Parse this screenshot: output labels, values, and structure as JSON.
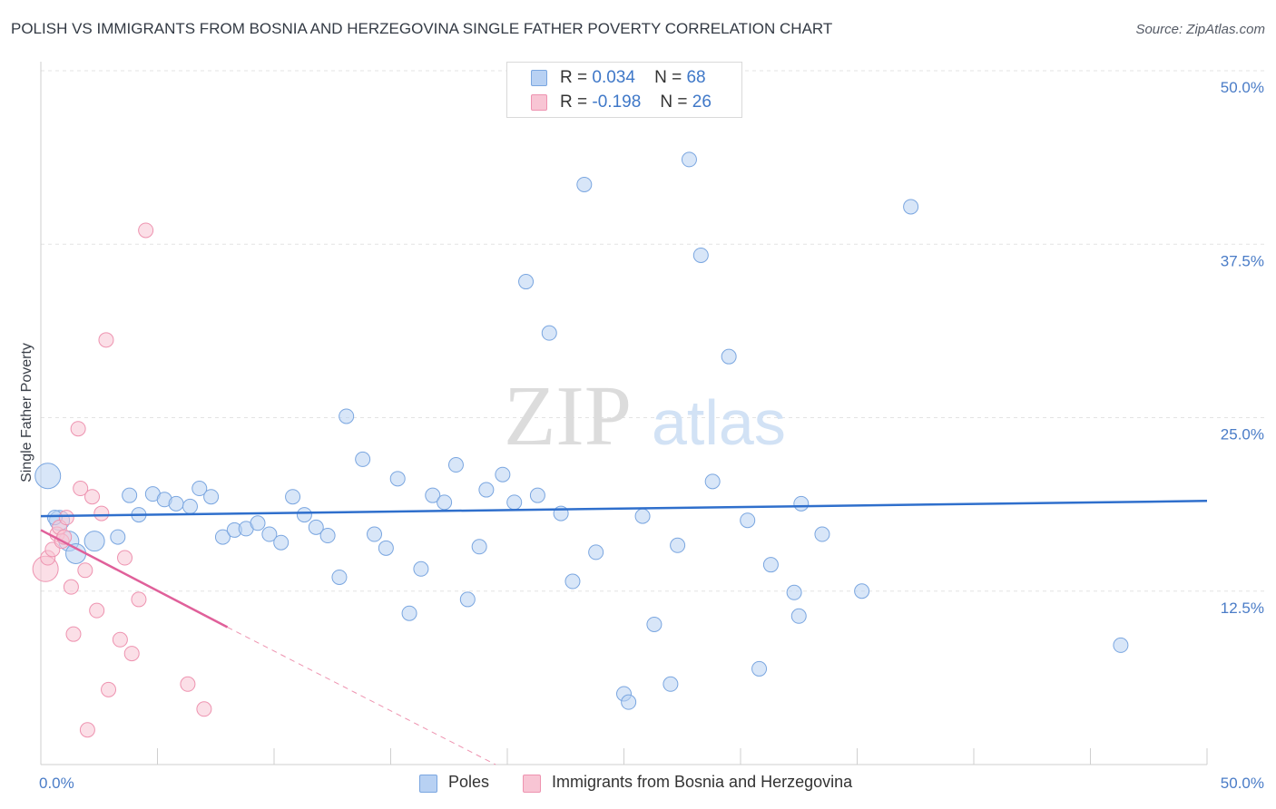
{
  "chart_data": {
    "type": "scatter",
    "title": "POLISH VS IMMIGRANTS FROM BOSNIA AND HERZEGOVINA SINGLE FATHER POVERTY CORRELATION CHART",
    "source": "Source: ZipAtlas.com",
    "ylabel": "Single Father Poverty",
    "xlabel": "",
    "xlim": [
      0,
      50
    ],
    "ylim": [
      0,
      50
    ],
    "x_tick_labels": [
      "0.0%",
      "50.0%"
    ],
    "y_tick_labels": [
      "12.5%",
      "25.0%",
      "37.5%",
      "50.0%"
    ],
    "y_ticks": [
      12.5,
      25.0,
      37.5,
      50.0
    ],
    "watermark": {
      "zip": "ZIP",
      "atlas": "atlas"
    },
    "legend": {
      "r_label": "R =",
      "n_label": "N =",
      "entries": [
        {
          "name": "Poles",
          "r": "0.034",
          "n": "68"
        },
        {
          "name": "Immigrants from Bosnia and Herzegovina",
          "r": "-0.198",
          "n": "26"
        }
      ]
    },
    "colors": {
      "poles_fill": "#b8d1f3",
      "poles_stroke": "#7aa6e0",
      "poles_line": "#2f6fcc",
      "bosnia_fill": "#f8c5d4",
      "bosnia_stroke": "#ee93b0",
      "bosnia_line": "#e0609a",
      "axis_text": "#4a7cc7"
    },
    "series": [
      {
        "name": "Poles",
        "trend": {
          "x": [
            0,
            50
          ],
          "y": [
            17.9,
            19.0
          ]
        },
        "points": [
          [
            0.3,
            20.8
          ],
          [
            0.8,
            17.6
          ],
          [
            1.2,
            16.1
          ],
          [
            1.5,
            15.2
          ],
          [
            2.3,
            16.1
          ],
          [
            3.3,
            16.4
          ],
          [
            3.8,
            19.4
          ],
          [
            4.2,
            18.0
          ],
          [
            4.8,
            19.5
          ],
          [
            5.3,
            19.1
          ],
          [
            5.8,
            18.8
          ],
          [
            6.4,
            18.6
          ],
          [
            6.8,
            19.9
          ],
          [
            7.3,
            19.3
          ],
          [
            7.8,
            16.4
          ],
          [
            8.3,
            16.9
          ],
          [
            8.8,
            17.0
          ],
          [
            9.3,
            17.4
          ],
          [
            9.8,
            16.6
          ],
          [
            10.3,
            16.0
          ],
          [
            10.8,
            19.3
          ],
          [
            11.3,
            18.0
          ],
          [
            11.8,
            17.1
          ],
          [
            12.3,
            16.5
          ],
          [
            12.8,
            13.5
          ],
          [
            13.1,
            25.1
          ],
          [
            13.8,
            22.0
          ],
          [
            14.3,
            16.6
          ],
          [
            14.8,
            15.6
          ],
          [
            15.3,
            20.6
          ],
          [
            15.8,
            10.9
          ],
          [
            16.3,
            14.1
          ],
          [
            16.8,
            19.4
          ],
          [
            17.3,
            18.9
          ],
          [
            17.8,
            21.6
          ],
          [
            18.3,
            11.9
          ],
          [
            18.8,
            15.7
          ],
          [
            19.1,
            19.8
          ],
          [
            19.8,
            20.9
          ],
          [
            20.3,
            18.9
          ],
          [
            20.8,
            34.8
          ],
          [
            21.3,
            19.4
          ],
          [
            21.8,
            31.1
          ],
          [
            22.3,
            18.1
          ],
          [
            22.8,
            13.2
          ],
          [
            23.3,
            41.8
          ],
          [
            23.8,
            15.3
          ],
          [
            25.0,
            5.1
          ],
          [
            25.2,
            4.5
          ],
          [
            25.8,
            17.9
          ],
          [
            26.3,
            10.1
          ],
          [
            27.0,
            5.8
          ],
          [
            27.3,
            15.8
          ],
          [
            27.8,
            43.6
          ],
          [
            28.3,
            36.7
          ],
          [
            28.8,
            20.4
          ],
          [
            29.5,
            29.4
          ],
          [
            30.3,
            17.6
          ],
          [
            30.8,
            6.9
          ],
          [
            31.3,
            14.4
          ],
          [
            32.3,
            12.4
          ],
          [
            32.5,
            10.7
          ],
          [
            32.6,
            18.8
          ],
          [
            33.5,
            16.6
          ],
          [
            35.2,
            12.5
          ],
          [
            37.3,
            40.2
          ],
          [
            46.3,
            8.6
          ],
          [
            0.6,
            17.8
          ]
        ]
      },
      {
        "name": "Immigrants from Bosnia and Herzegovina",
        "trend": {
          "x": [
            0,
            8.0
          ],
          "y": [
            16.9,
            9.9
          ]
        },
        "trend_dashed": {
          "x": [
            8.0,
            19.5
          ],
          "y": [
            9.9,
            0
          ]
        },
        "points": [
          [
            0.2,
            14.1
          ],
          [
            0.3,
            14.9
          ],
          [
            0.5,
            15.5
          ],
          [
            0.7,
            16.6
          ],
          [
            0.8,
            17.1
          ],
          [
            0.9,
            16.1
          ],
          [
            1.0,
            16.4
          ],
          [
            1.1,
            17.8
          ],
          [
            1.3,
            12.8
          ],
          [
            1.4,
            9.4
          ],
          [
            1.6,
            24.2
          ],
          [
            1.7,
            19.9
          ],
          [
            1.9,
            14.0
          ],
          [
            2.0,
            2.5
          ],
          [
            2.2,
            19.3
          ],
          [
            2.4,
            11.1
          ],
          [
            2.6,
            18.1
          ],
          [
            2.8,
            30.6
          ],
          [
            2.9,
            5.4
          ],
          [
            3.4,
            9.0
          ],
          [
            3.6,
            14.9
          ],
          [
            3.9,
            8.0
          ],
          [
            4.2,
            11.9
          ],
          [
            4.5,
            38.5
          ],
          [
            6.3,
            5.8
          ],
          [
            7.0,
            4.0
          ]
        ]
      }
    ]
  }
}
